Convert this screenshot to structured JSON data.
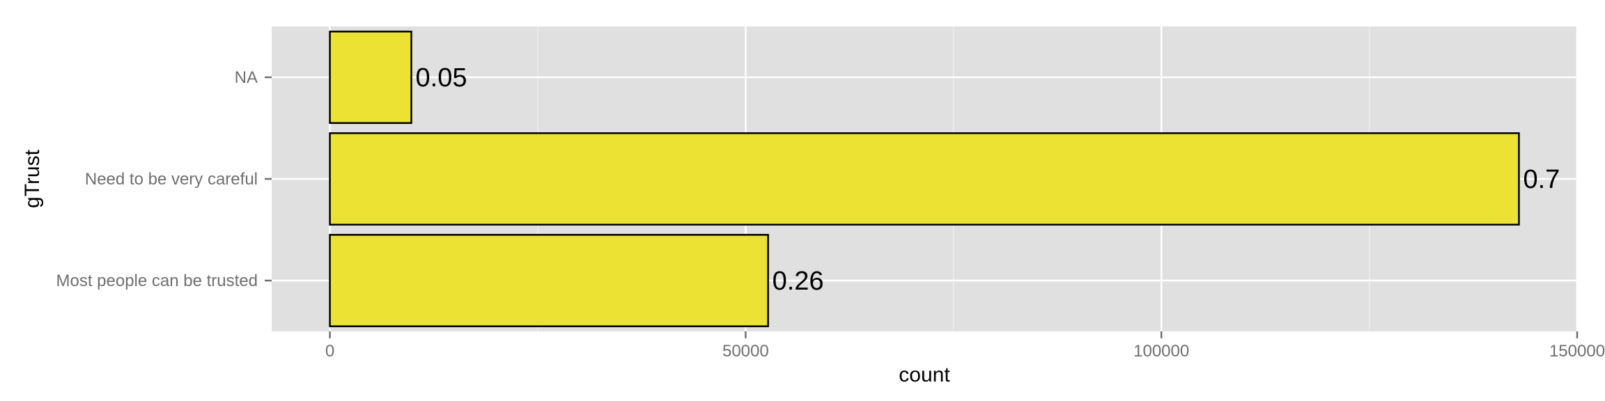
{
  "chart_data": {
    "type": "bar",
    "orientation": "horizontal",
    "categories": [
      "NA",
      "Need to be very careful",
      "Most people can be trusted"
    ],
    "values": [
      9800,
      143000,
      52700
    ],
    "labels": [
      "0.05",
      "0.7",
      "0.26"
    ],
    "xlabel": "count",
    "ylabel": "gTrust",
    "xlim": [
      -7000,
      150000
    ],
    "xticks": [
      0,
      50000,
      100000,
      150000
    ],
    "xtick_labels": [
      "0",
      "50000",
      "100000",
      "150000"
    ],
    "grid": true,
    "bar_color": "#ece234",
    "bar_outline": "#000000",
    "panel_color": "#e0e0e0"
  }
}
